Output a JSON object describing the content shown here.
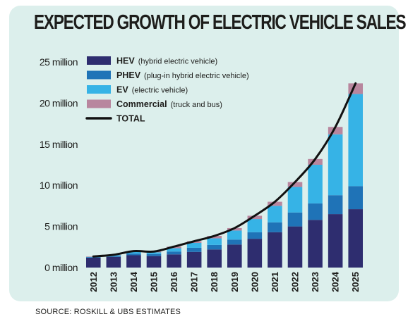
{
  "title": "EXPECTED GROWTH OF ELECTRIC VEHICLE SALES",
  "source": "SOURCE: ROSKILL & UBS ESTIMATES",
  "colors": {
    "panel": "#dcefec",
    "HEV": "#2e2d6f",
    "PHEV": "#1f73b7",
    "EV": "#36b3e6",
    "Commercial": "#b8869e",
    "TOTAL": "#111111"
  },
  "chart_data": {
    "type": "bar",
    "stacked": true,
    "categories": [
      "2012",
      "2013",
      "2014",
      "2015",
      "2016",
      "2017",
      "2018",
      "2019",
      "2020",
      "2021",
      "2022",
      "2023",
      "2024",
      "2025"
    ],
    "series": [
      {
        "name": "HEV",
        "description": "(hybrid electric vehicle)",
        "values": [
          1.2,
          1.3,
          1.5,
          1.4,
          1.6,
          1.9,
          2.2,
          2.8,
          3.5,
          4.3,
          5.0,
          5.8,
          6.5,
          7.1
        ]
      },
      {
        "name": "PHEV",
        "description": "(plug-in hybrid electric vehicle)",
        "values": [
          0.05,
          0.1,
          0.2,
          0.25,
          0.35,
          0.5,
          0.55,
          0.6,
          0.8,
          1.2,
          1.7,
          2.0,
          2.3,
          2.8
        ]
      },
      {
        "name": "EV",
        "description": "(electric vehicle)",
        "values": [
          0.05,
          0.1,
          0.2,
          0.2,
          0.4,
          0.6,
          0.8,
          1.1,
          1.6,
          2.0,
          3.1,
          4.7,
          7.4,
          11.2
        ]
      },
      {
        "name": "Commercial",
        "description": "(truck and bus)",
        "values": [
          0.05,
          0.05,
          0.1,
          0.1,
          0.2,
          0.2,
          0.3,
          0.3,
          0.4,
          0.5,
          0.6,
          0.7,
          0.9,
          1.3
        ]
      }
    ],
    "total": {
      "name": "TOTAL",
      "values": [
        1.35,
        1.55,
        2.0,
        1.95,
        2.55,
        3.2,
        3.85,
        4.8,
        6.3,
        8.0,
        10.4,
        13.2,
        17.1,
        22.4
      ]
    },
    "yticks": [
      0,
      5,
      10,
      15,
      20,
      25
    ],
    "ytick_labels": [
      "0 million",
      "5 million",
      "10 million",
      "15 million",
      "20 million",
      "25 million"
    ],
    "ylim": [
      0,
      25
    ],
    "legend_position": "top-left",
    "grid": false
  }
}
